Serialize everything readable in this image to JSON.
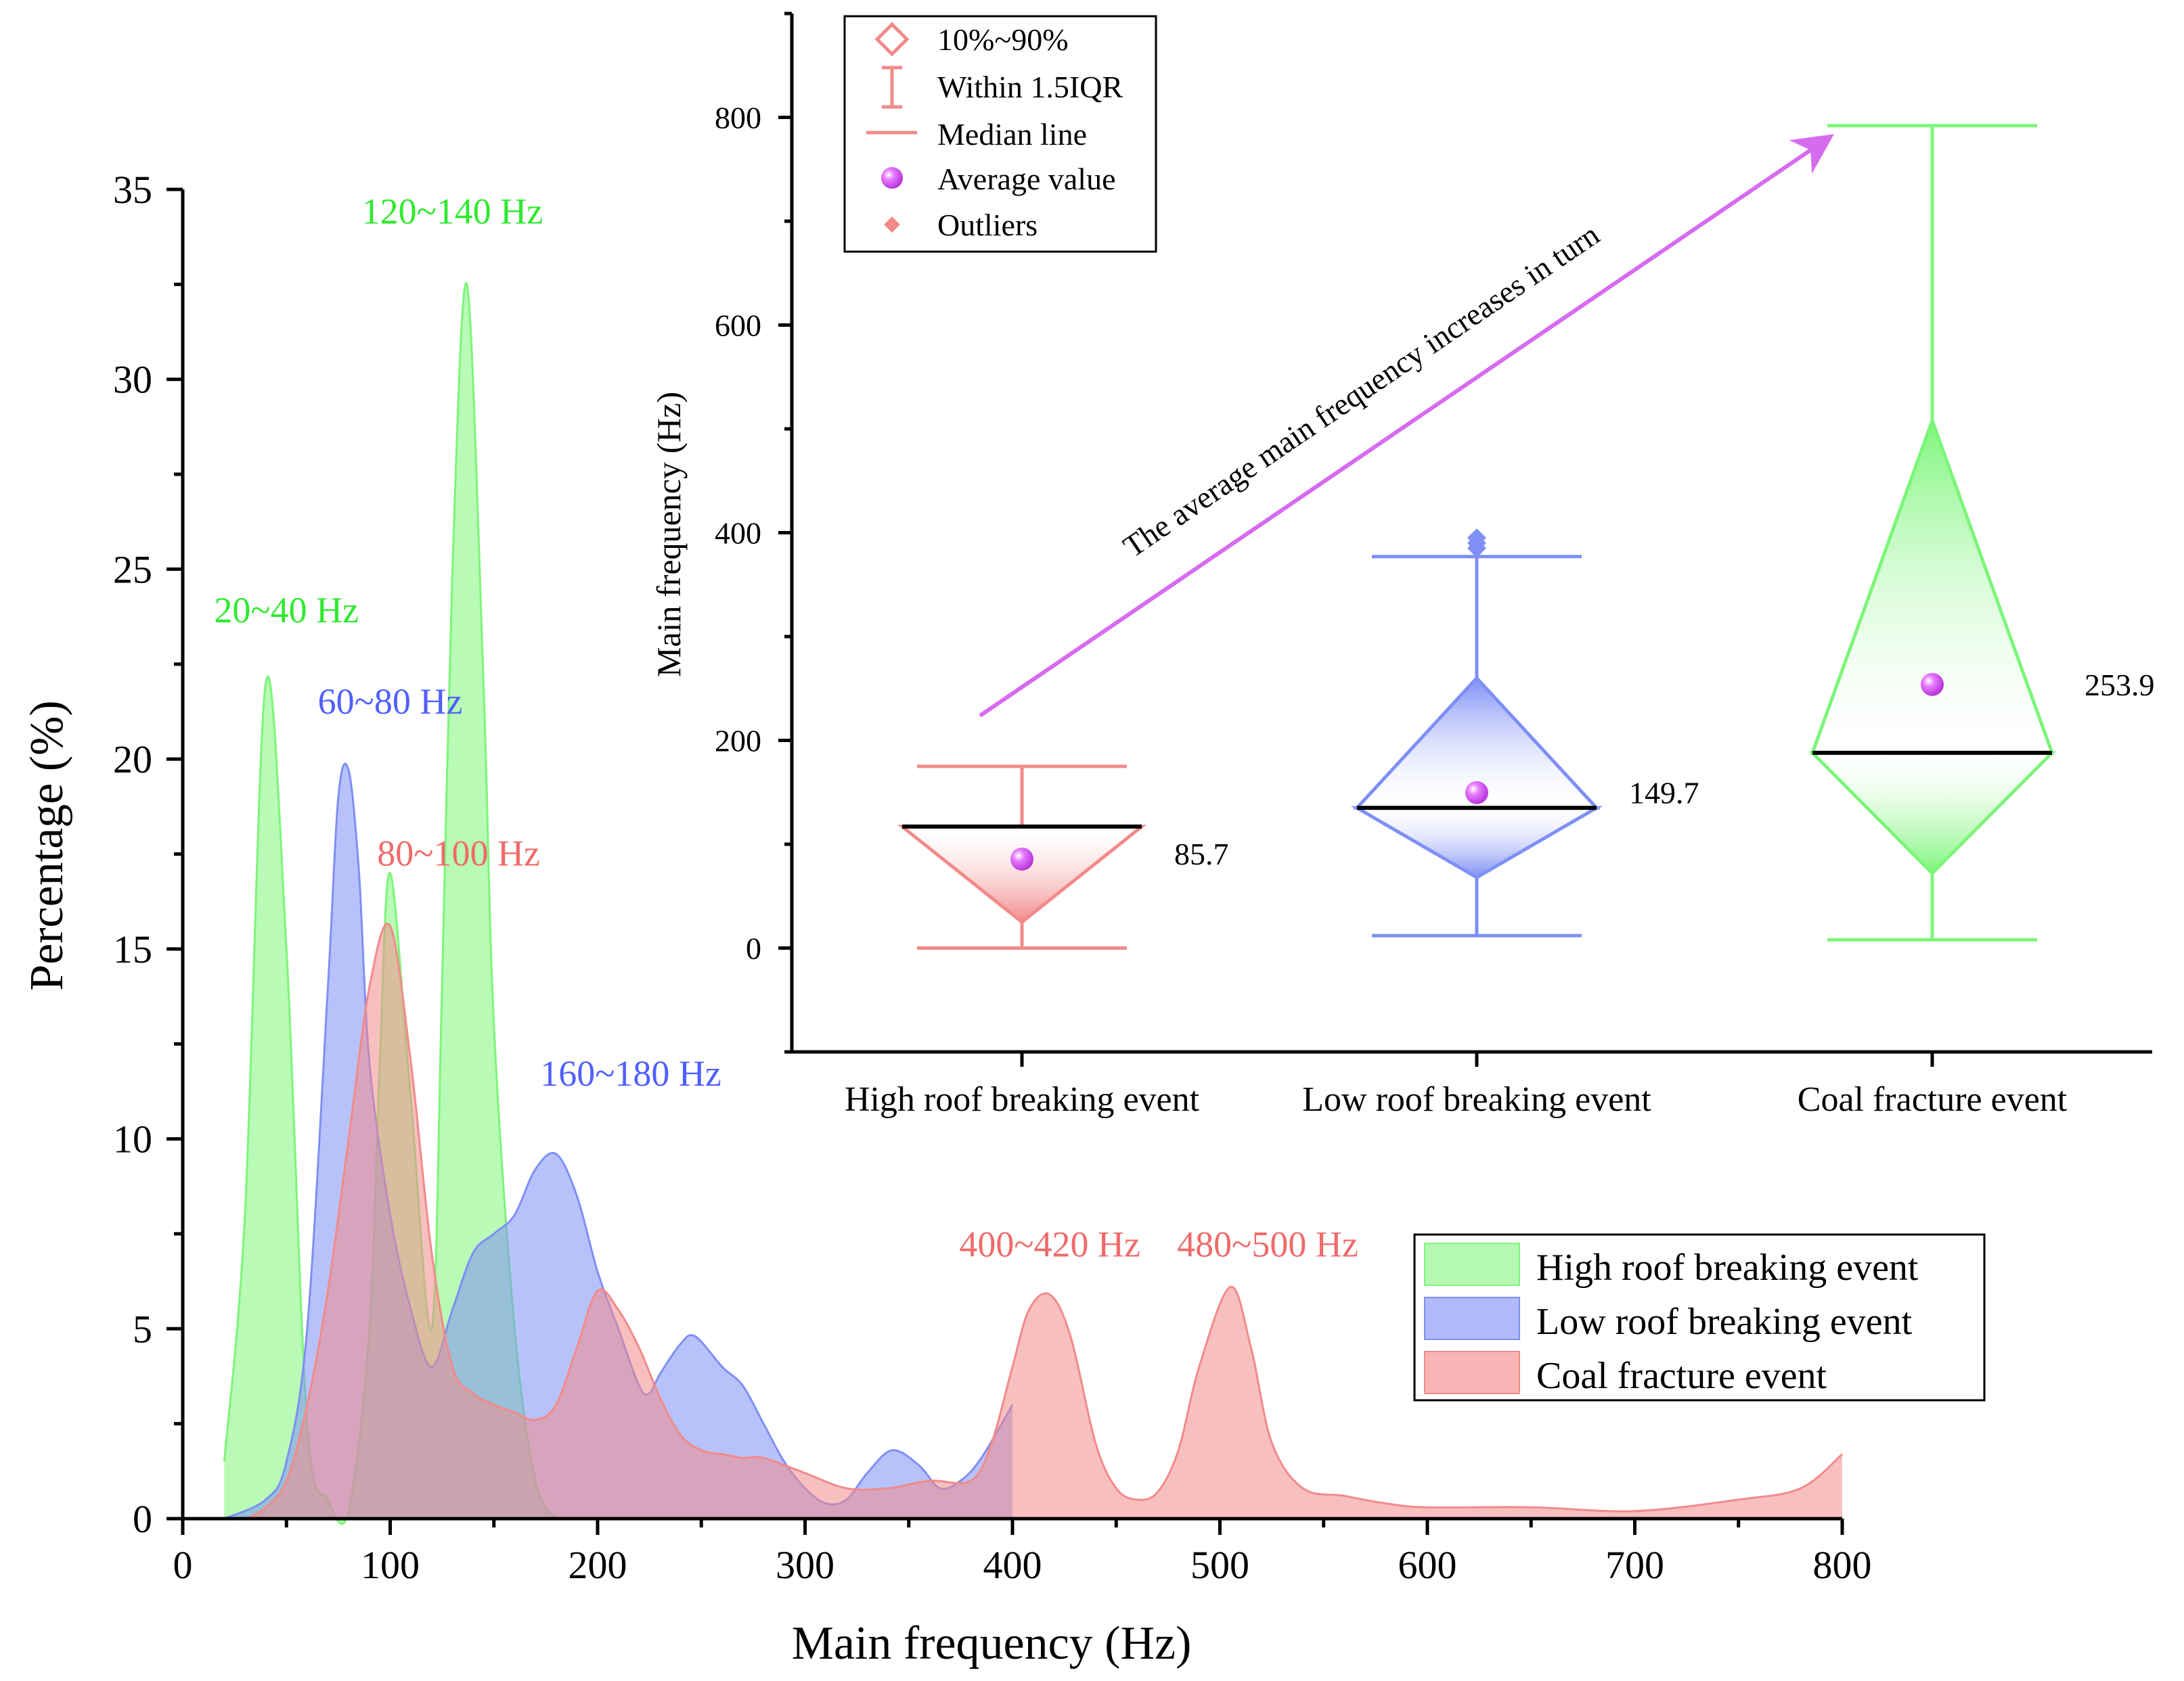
{
  "chart_data": [
    {
      "type": "area",
      "title": "",
      "xlabel": "Main frequency (Hz)",
      "ylabel": "Percentage (%)",
      "xlim": [
        0,
        800
      ],
      "ylim": [
        0,
        35
      ],
      "x_ticks": [
        "0",
        "100",
        "200",
        "300",
        "400",
        "500",
        "600",
        "700",
        "800"
      ],
      "y_ticks": [
        "0",
        "5",
        "10",
        "15",
        "20",
        "25",
        "30",
        "35"
      ],
      "legend_position": "bottom-right",
      "series": [
        {
          "name": "High roof breaking event",
          "color": "#7df57a",
          "x": [
            20,
            30,
            40,
            50,
            60,
            70,
            80,
            90,
            95,
            100,
            110,
            120,
            125,
            130,
            137,
            145,
            150,
            160,
            170,
            180
          ],
          "values": [
            1.5,
            8,
            22,
            15,
            2.5,
            0.5,
            0.2,
            5,
            12,
            17,
            11,
            5,
            14,
            25,
            32.5,
            22,
            13,
            5,
            1,
            0
          ]
        },
        {
          "name": "Low roof breaking event",
          "color": "#7e8ff5",
          "x": [
            20,
            40,
            50,
            60,
            70,
            75,
            80,
            85,
            90,
            100,
            110,
            120,
            130,
            140,
            150,
            160,
            170,
            180,
            190,
            200,
            210,
            220,
            225,
            230,
            240,
            247,
            260,
            270,
            280,
            290,
            300,
            310,
            320,
            330,
            342,
            355,
            365,
            375,
            385,
            400
          ],
          "values": [
            0,
            0.5,
            1.5,
            5,
            14,
            19,
            19.7,
            17,
            12,
            8,
            5.5,
            4,
            5.5,
            7,
            7.5,
            8,
            9.2,
            9.6,
            8.5,
            6.5,
            5,
            3.5,
            3.3,
            3.8,
            4.6,
            4.8,
            4,
            3.5,
            2.5,
            1.5,
            0.8,
            0.4,
            0.5,
            1.2,
            1.8,
            1.4,
            0.8,
            1,
            1.6,
            3
          ]
        },
        {
          "name": "Coal fracture event",
          "color": "#f28a8a",
          "x": [
            20,
            30,
            40,
            50,
            60,
            70,
            80,
            90,
            100,
            110,
            120,
            130,
            140,
            150,
            160,
            170,
            180,
            190,
            200,
            210,
            220,
            230,
            240,
            250,
            260,
            270,
            280,
            300,
            320,
            340,
            360,
            380,
            390,
            400,
            408,
            418,
            428,
            440,
            450,
            460,
            470,
            480,
            490,
            505,
            515,
            525,
            540,
            560,
            580,
            600,
            650,
            700,
            750,
            780,
            800
          ],
          "values": [
            0,
            0,
            0.3,
            1,
            3,
            6,
            10,
            14,
            15.6,
            12,
            7,
            4,
            3.3,
            3,
            2.8,
            2.6,
            3,
            4.5,
            6,
            5.5,
            4.5,
            3.2,
            2.2,
            1.8,
            1.7,
            1.6,
            1.6,
            1.2,
            0.8,
            0.8,
            1,
            1,
            2,
            4,
            5.5,
            5.9,
            4.8,
            2,
            0.8,
            0.5,
            0.7,
            1.8,
            4,
            6.1,
            4.5,
            2,
            0.8,
            0.6,
            0.4,
            0.3,
            0.3,
            0.2,
            0.5,
            0.8,
            1.7
          ]
        }
      ],
      "annotations": [
        {
          "text": "120~140 Hz",
          "x": 130,
          "y": 34.1,
          "color": "#2fea2f"
        },
        {
          "text": "20~40 Hz",
          "x": 50,
          "y": 23.6,
          "color": "#2fea2f"
        },
        {
          "text": "60~80 Hz",
          "x": 100,
          "y": 21.2,
          "color": "#5060ff"
        },
        {
          "text": "80~100 Hz",
          "x": 133,
          "y": 17.2,
          "color": "#f06a6a"
        },
        {
          "text": "160~180 Hz",
          "x": 216,
          "y": 11.4,
          "color": "#5060ff"
        },
        {
          "text": "400~420 Hz",
          "x": 418,
          "y": 6.9,
          "color": "#f06a6a"
        },
        {
          "text": "480~500 Hz",
          "x": 523,
          "y": 6.9,
          "color": "#f06a6a"
        }
      ]
    },
    {
      "type": "box",
      "title": "",
      "xlabel": "",
      "ylabel": "Main frequency (Hz)",
      "ylim": [
        -100,
        900
      ],
      "y_ticks": [
        "0",
        "200",
        "400",
        "600",
        "800"
      ],
      "categories": [
        "High roof breaking event",
        "Low roof breaking event",
        "Coal fracture event"
      ],
      "boxes": [
        {
          "category": "High roof breaking event",
          "whisker_low": 0,
          "whisker_high": 175,
          "p10": 25,
          "p90": 117,
          "median": 117,
          "mean": 85.7,
          "mean_label": "85.7",
          "outliers": [],
          "color": "#f28a8a"
        },
        {
          "category": "Low roof breaking event",
          "whisker_low": 12,
          "whisker_high": 377,
          "p10": 68,
          "p90": 260,
          "median": 135,
          "mean": 149.7,
          "mean_label": "149.7",
          "outliers": [
            385,
            390,
            395
          ],
          "color": "#7e8ff5"
        },
        {
          "category": "Coal fracture event",
          "whisker_low": 8,
          "whisker_high": 792,
          "p10": 72,
          "p90": 508,
          "median": 188,
          "mean": 253.9,
          "mean_label": "253.9",
          "outliers": [],
          "color": "#7df57a"
        }
      ],
      "annotation": "The average main frequency increases in turn",
      "legend_position": "top-left",
      "legend": [
        "10%~90%",
        "Within 1.5IQR",
        "Median line",
        "Average value",
        "Outliers"
      ]
    }
  ]
}
